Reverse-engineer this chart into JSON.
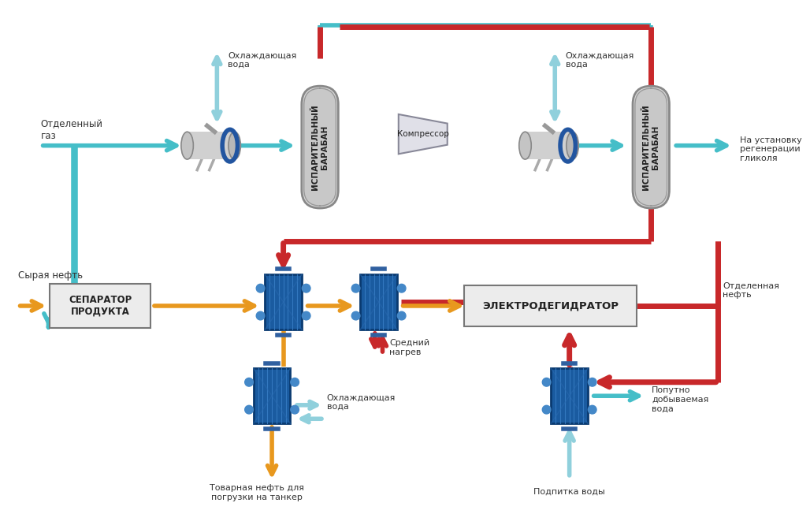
{
  "bg_color": "#ffffff",
  "cyan": "#45BEC8",
  "red": "#C8282A",
  "orange": "#E8981E",
  "light_cyan": "#90D0DC",
  "text_color": "#333333",
  "labels": {
    "separator": "СЕПАРАТОР\nПРОДУКТА",
    "electrodehydrator": "ЭЛЕКТРОДЕГИДРАТОР",
    "drum1": "ИСПАРИТЕЛЬНЫЙ\nБАРАБАН",
    "drum2": "ИСПАРИТЕЛЬНЫЙ\nБАРАБАН",
    "compressor": "Компрессор",
    "raw_oil": "Сырая нефть",
    "separated_gas": "Отделенный\nгаз",
    "cooling_water1": "Охлаждающая\nвода",
    "cooling_water2": "Охлаждающая\nвода",
    "cooling_water3": "Охлаждающая\nвода",
    "to_glycol": "На установку\nрегенерации\nгликоля",
    "separated_oil": "Отделенная\nнефть",
    "produced_water": "Попутно\nдобываемая\nвода",
    "water_feed": "Подпитка воды",
    "commercial_oil": "Товарная нефть для\nпогрузки на танкер",
    "medium_heat": "Средний\nнагрев"
  }
}
